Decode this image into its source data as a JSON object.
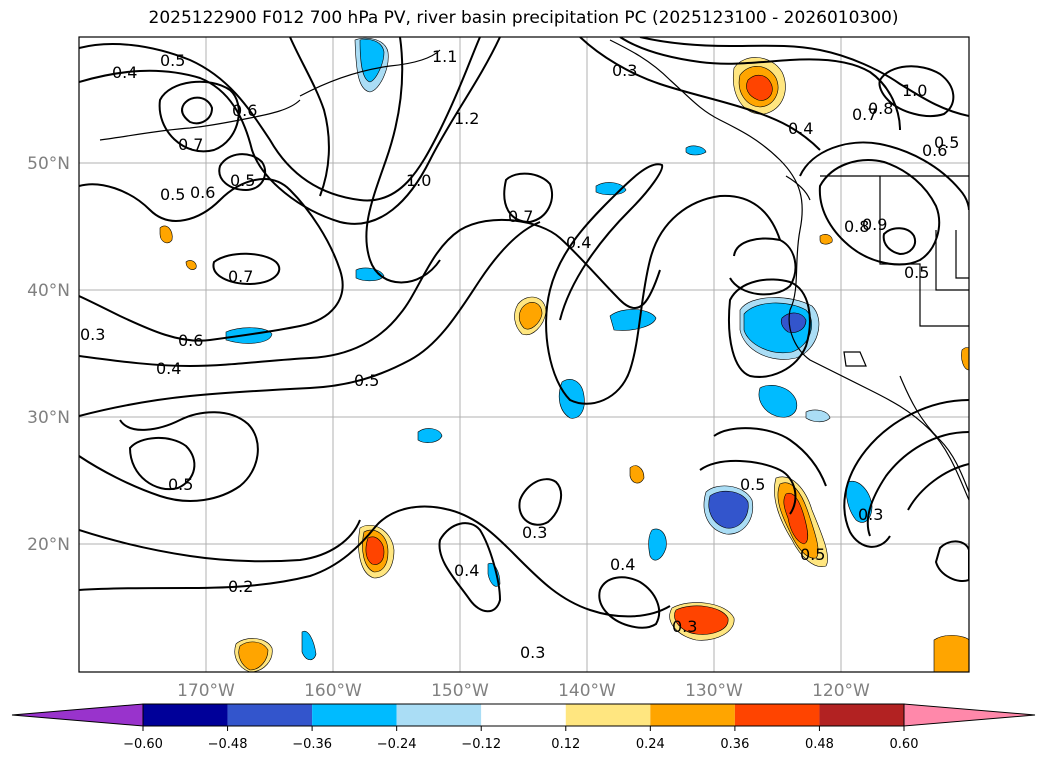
{
  "title": "2025122900 F012 700 hPa PV, river basin precipitation PC (2025123100 - 2026010300)",
  "latitude_labels": [
    "50°N",
    "40°N",
    "30°N",
    "20°N"
  ],
  "longitude_labels": [
    "170°W",
    "160°W",
    "150°W",
    "140°W",
    "130°W",
    "120°W"
  ],
  "colorbar": {
    "ticks": [
      "−0.60",
      "−0.48",
      "−0.36",
      "−0.24",
      "−0.12",
      "0.12",
      "0.24",
      "0.36",
      "0.48",
      "0.60"
    ],
    "colors": [
      "#9933cc",
      "#000099",
      "#3355cc",
      "#00bbff",
      "#aaddf5",
      "#ffffff",
      "#ffe680",
      "#ffa500",
      "#ff4400",
      "#b22222",
      "#ff88aa"
    ]
  },
  "contour_labels": [
    "0.4",
    "0.5",
    "0.7",
    "0.6",
    "0.5",
    "0.6",
    "0.7",
    "0.5",
    "1.2",
    "1.0",
    "0.7",
    "0.4",
    "0.3",
    "0.4",
    "0.6",
    "0.5",
    "0.5",
    "0.2",
    "0.3",
    "0.4",
    "0.4",
    "0.3",
    "0.5",
    "0.3",
    "0.5",
    "0.3",
    "0.4",
    "1.0",
    "0.8",
    "0.7",
    "0.5",
    "0.6",
    "0.9",
    "0.8",
    "0.5",
    "1.1",
    "0.3"
  ]
}
